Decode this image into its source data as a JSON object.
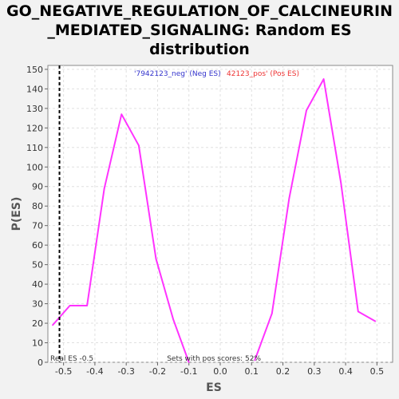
{
  "chart_data": {
    "type": "line",
    "title_lines": [
      "GO_NEGATIVE_REGULATION_OF_CALCINEURIN",
      "_MEDIATED_SIGNALING: Random ES",
      "distribution"
    ],
    "xlabel": "ES",
    "ylabel": "P(ES)",
    "xlim": [
      -0.55,
      0.55
    ],
    "ylim": [
      0,
      152
    ],
    "xticks": [
      -0.5,
      -0.4,
      -0.3,
      -0.2,
      -0.1,
      0.0,
      0.1,
      0.2,
      0.3,
      0.4,
      0.5
    ],
    "xtick_labels": [
      "-0.5",
      "-0.4",
      "-0.3",
      "-0.2",
      "-0.1",
      "0.0",
      "0.1",
      "0.2",
      "0.3",
      "0.4",
      "0.5"
    ],
    "yticks": [
      0,
      10,
      20,
      30,
      40,
      50,
      60,
      70,
      80,
      90,
      100,
      110,
      120,
      130,
      140,
      150
    ],
    "ytick_labels": [
      "0",
      "10",
      "20",
      "30",
      "40",
      "50",
      "60",
      "70",
      "80",
      "90",
      "100",
      "110",
      "120",
      "130",
      "140",
      "150"
    ],
    "grid": true,
    "series": [
      {
        "name": "'7942123_neg' (Neg ES)",
        "legend_color": "#3333cc",
        "color": "#ff33ff",
        "x": [
          -0.535,
          -0.48,
          -0.425,
          -0.37,
          -0.315,
          -0.26,
          -0.205,
          -0.15,
          -0.1
        ],
        "y": [
          19,
          29,
          29,
          89,
          127,
          111,
          53,
          22,
          0
        ]
      },
      {
        "name": "42123_pos' (Pos ES)",
        "legend_color": "#ee3333",
        "color": "#ff33ff",
        "x": [
          0.11,
          0.165,
          0.22,
          0.275,
          0.33,
          0.385,
          0.44,
          0.495
        ],
        "y": [
          1,
          25,
          84,
          129,
          145,
          92,
          26,
          21
        ]
      }
    ],
    "real_es": -0.513,
    "annotations": {
      "real_es_label": "Real ES -0.5",
      "pos_scores_label": "Sets with pos scores: 52%"
    }
  }
}
